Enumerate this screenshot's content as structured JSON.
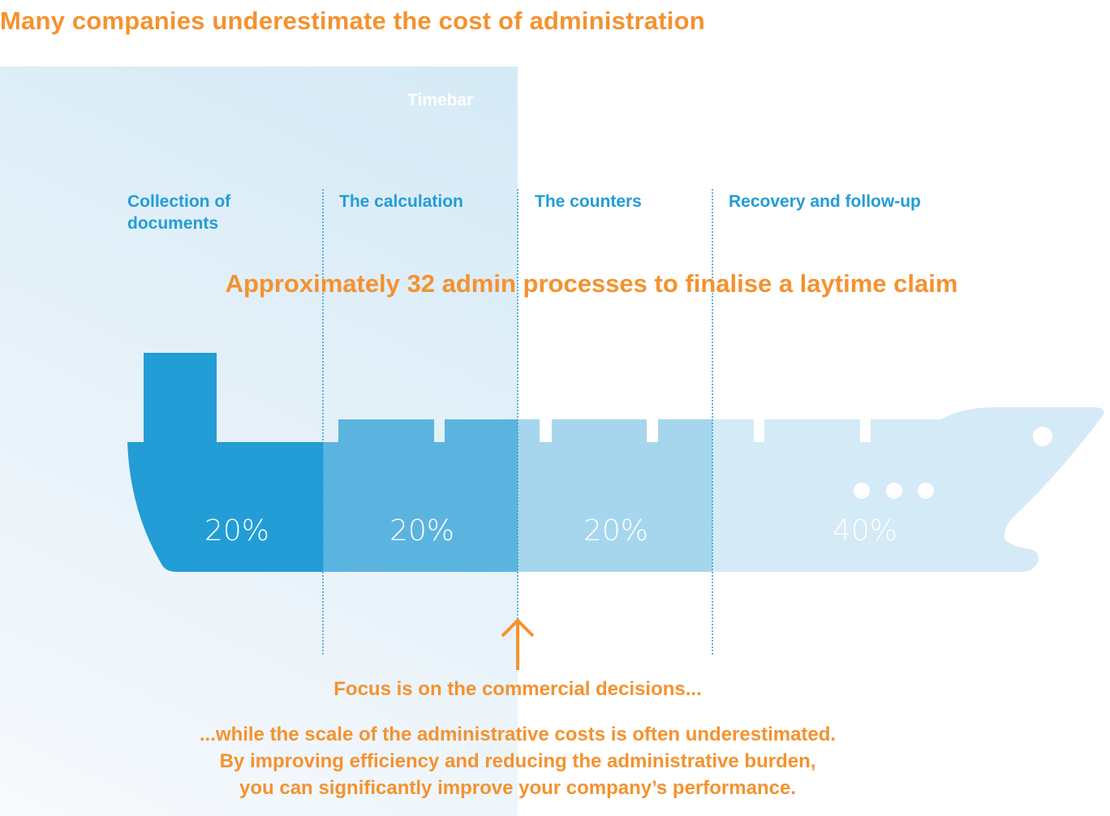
{
  "title": "Many companies underestimate the cost of administration",
  "timebar_label": "Timebar",
  "phases": [
    {
      "label": "Collection of documents",
      "percent": "20%",
      "color": "#229dd6"
    },
    {
      "label": "The calculation",
      "percent": "20%",
      "color": "#5bb4e0"
    },
    {
      "label": "The counters",
      "percent": "20%",
      "color": "#a6d6ee"
    },
    {
      "label": "Recovery and follow-up",
      "percent": "40%",
      "color": "#d4eaf6"
    }
  ],
  "headline": "Approximately 32 admin processes to finalise a laytime claim",
  "focus_text": "Focus is on the commercial decisions...",
  "body_lines": [
    "...while the scale of the administrative costs is often underestimated.",
    "By improving efficiency and reducing the administrative burden,",
    "you can significantly improve your company’s performance."
  ],
  "colors": {
    "accent": "#f4922f",
    "brand_blue": "#229dd6"
  },
  "icons": {
    "arrow": "arrow-up-icon",
    "ship": "ship-icon"
  }
}
